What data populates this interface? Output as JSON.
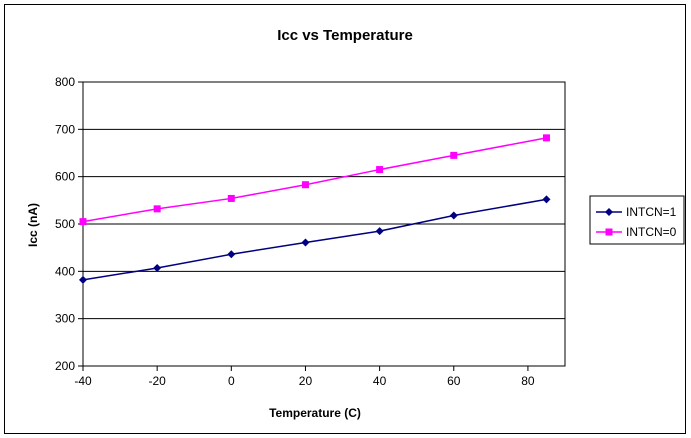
{
  "chart_data": {
    "type": "line",
    "title": "Icc vs Temperature",
    "xlabel": "Temperature (C)",
    "ylabel": "Icc (nA)",
    "x": [
      -40,
      -20,
      0,
      20,
      40,
      60,
      85
    ],
    "x_ticks": [
      -40,
      -20,
      0,
      20,
      40,
      60,
      80
    ],
    "xlim": [
      -40,
      90
    ],
    "ylim": [
      200,
      800
    ],
    "y_ticks": [
      200,
      300,
      400,
      500,
      600,
      700,
      800
    ],
    "grid": "horizontal",
    "legend_position": "right",
    "series": [
      {
        "name": "INTCN=1",
        "values": [
          382,
          407,
          436,
          461,
          485,
          518,
          552
        ],
        "color": "#000080",
        "marker": "diamond"
      },
      {
        "name": "INTCN=0",
        "values": [
          505,
          532,
          554,
          583,
          615,
          645,
          682
        ],
        "color": "#FF00FF",
        "marker": "square"
      }
    ]
  }
}
